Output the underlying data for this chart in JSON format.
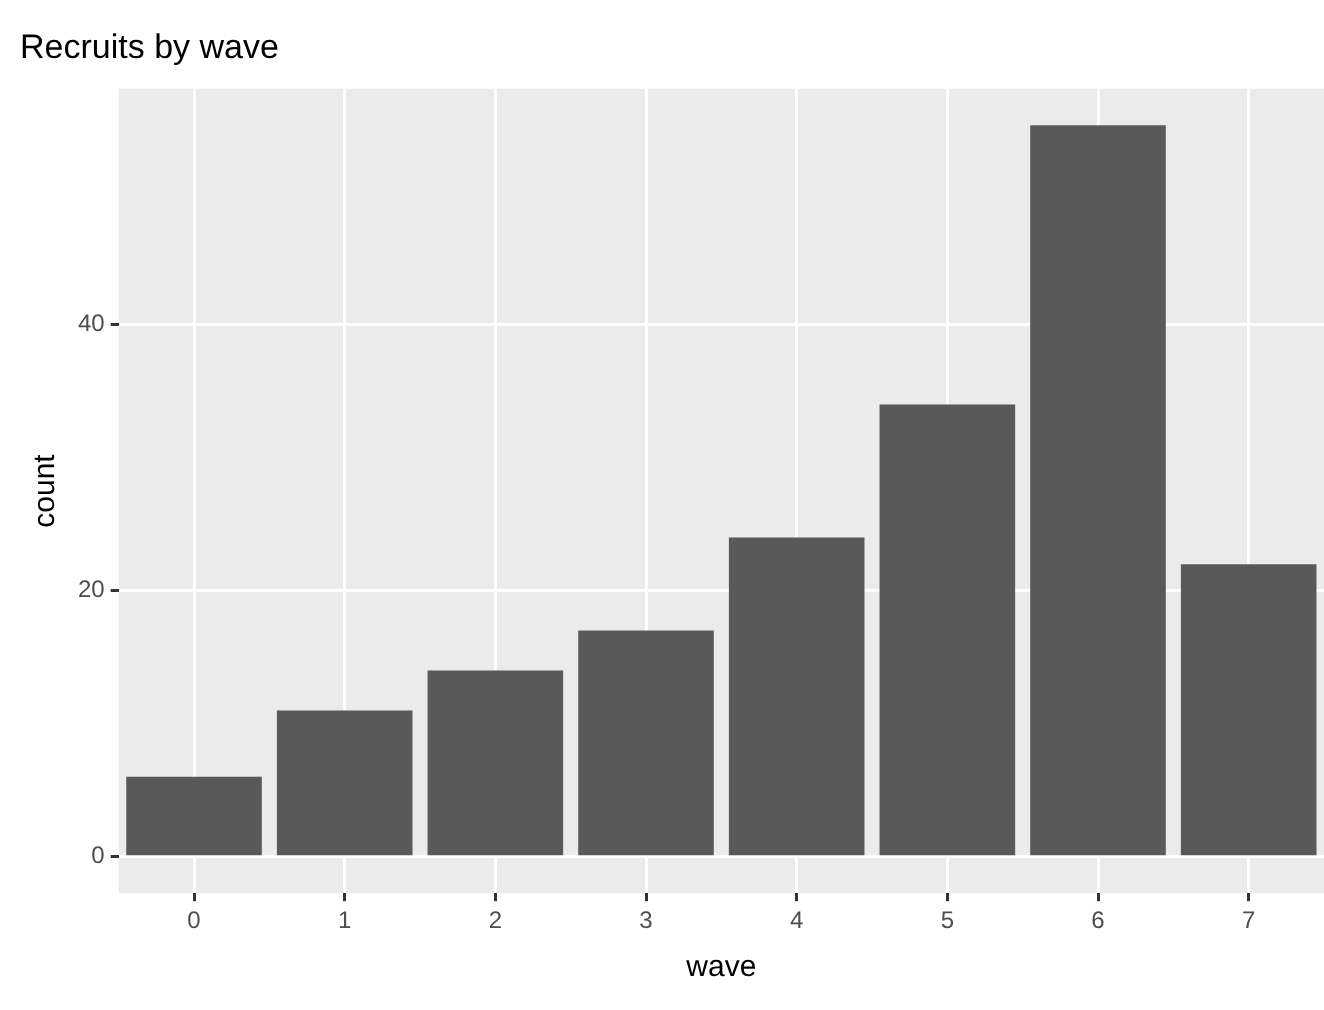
{
  "chart_data": {
    "type": "bar",
    "title": "Recruits by wave",
    "xlabel": "wave",
    "ylabel": "count",
    "categories": [
      "0",
      "1",
      "2",
      "3",
      "4",
      "5",
      "6",
      "7"
    ],
    "values": [
      6,
      11,
      14,
      17,
      24,
      34,
      55,
      22
    ],
    "color": "#595959",
    "ylim": [
      -2.75,
      57.75
    ],
    "yticks": [
      0,
      20,
      40
    ],
    "grid": true,
    "legend": false
  }
}
